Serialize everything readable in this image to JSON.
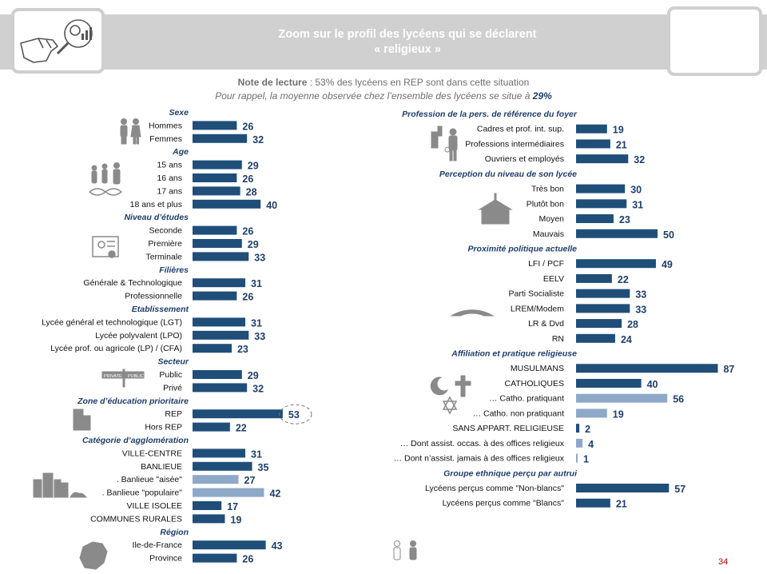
{
  "header": {
    "title_line1": "Zoom sur le profil des lycéens qui se déclarent",
    "title_line2": "« religieux »"
  },
  "note": {
    "label": "Note de lecture",
    "text": " :  53% des lycéens en REP sont dans cette situation",
    "reminder": "Pour rappel, la moyenne observée chez l’ensemble des lycéens se situe à ",
    "reminder_value": "29%"
  },
  "page_number": "34",
  "colors": {
    "primary": "#1f4e79",
    "secondary": "#8ea9c8",
    "heading": "#1f3e6b",
    "banner": "#d0d0d0"
  },
  "icons": [
    "people-icon",
    "family-dna-icon",
    "diploma-icon",
    "buildings-icon",
    "road-sign-icon",
    "city-skyline-icon",
    "france-map-icon",
    "workers-icon",
    "school-building-icon",
    "parliament-icon",
    "religious-symbols-icon",
    "person-outline-icon"
  ],
  "chart_data": {
    "type": "bar",
    "unit": "%",
    "left_column": [
      {
        "group": "Sexe",
        "items": [
          {
            "label": "Hommes",
            "value": 26
          },
          {
            "label": "Femmes",
            "value": 32
          }
        ]
      },
      {
        "group": "Age",
        "items": [
          {
            "label": "15 ans",
            "value": 29
          },
          {
            "label": "16 ans",
            "value": 26
          },
          {
            "label": "17 ans",
            "value": 28
          },
          {
            "label": "18 ans et plus",
            "value": 40
          }
        ]
      },
      {
        "group": "Niveau d’études",
        "items": [
          {
            "label": "Seconde",
            "value": 26
          },
          {
            "label": "Première",
            "value": 29
          },
          {
            "label": "Terminale",
            "value": 33
          }
        ]
      },
      {
        "group": "Filières",
        "items": [
          {
            "label": "Générale & Technologique",
            "value": 31
          },
          {
            "label": "Professionnelle",
            "value": 26
          }
        ]
      },
      {
        "group": "Etablissement",
        "items": [
          {
            "label": "Lycée général et technologique (LGT)",
            "value": 31
          },
          {
            "label": "Lycée polyvalent (LPO)",
            "value": 33
          },
          {
            "label": "Lycée prof. ou agricole (LP) / (CFA)",
            "value": 23
          }
        ]
      },
      {
        "group": "Secteur",
        "items": [
          {
            "label": "Public",
            "value": 29
          },
          {
            "label": "Privé",
            "value": 32
          }
        ]
      },
      {
        "group": "Zone d’éducation prioritaire",
        "items": [
          {
            "label": "REP",
            "value": 53,
            "highlight": true
          },
          {
            "label": "Hors REP",
            "value": 22
          }
        ]
      },
      {
        "group": "Catégorie d’agglomération",
        "items": [
          {
            "label": "VILLE-CENTRE",
            "value": 31
          },
          {
            "label": "BANLIEUE",
            "value": 35
          },
          {
            "label": ". Banlieue \"aisée\"",
            "value": 27,
            "sub": true
          },
          {
            "label": ". Banlieue \"populaire\"",
            "value": 42,
            "sub": true
          },
          {
            "label": "VILLE ISOLEE",
            "value": 17
          },
          {
            "label": "COMMUNES RURALES",
            "value": 19
          }
        ]
      },
      {
        "group": "Région",
        "items": [
          {
            "label": "Ile-de-France",
            "value": 43
          },
          {
            "label": "Province",
            "value": 26
          }
        ]
      }
    ],
    "right_column": [
      {
        "group": "Profession de la pers. de référence du foyer",
        "items": [
          {
            "label": "Cadres et prof. int. sup.",
            "value": 19
          },
          {
            "label": "Professions intermédiaires",
            "value": 21
          },
          {
            "label": "Ouvriers et employés",
            "value": 32
          }
        ]
      },
      {
        "group": "Perception du niveau de son lycée",
        "items": [
          {
            "label": "Très bon",
            "value": 30
          },
          {
            "label": "Plutôt bon",
            "value": 31
          },
          {
            "label": "Moyen",
            "value": 23
          },
          {
            "label": "Mauvais",
            "value": 50
          }
        ]
      },
      {
        "group": "Proximité politique actuelle",
        "items": [
          {
            "label": "LFI / PCF",
            "value": 49
          },
          {
            "label": "EELV",
            "value": 22
          },
          {
            "label": "Parti Socialiste",
            "value": 33
          },
          {
            "label": "LREM/Modem",
            "value": 33
          },
          {
            "label": "LR & Dvd",
            "value": 28
          },
          {
            "label": "RN",
            "value": 24
          }
        ]
      },
      {
        "group": "Affiliation et pratique religieuse",
        "items": [
          {
            "label": "MUSULMANS",
            "value": 87
          },
          {
            "label": "CATHOLIQUES",
            "value": 40
          },
          {
            "label": "… Catho. pratiquant",
            "value": 56,
            "sub": true
          },
          {
            "label": "… Catho. non pratiquant",
            "value": 19,
            "sub": true
          },
          {
            "label": "SANS APPART. RELIGIEUSE",
            "value": 2
          },
          {
            "label": "… Dont assist. occas. à des offices religieux",
            "value": 4,
            "sub": true
          },
          {
            "label": "… Dont n’assist. jamais à des offices religieux",
            "value": 1,
            "sub": true
          }
        ]
      },
      {
        "group": "Groupe ethnique perçu par autrui",
        "items": [
          {
            "label": "Lycéens perçus comme \"Non-blancs\"",
            "value": 57
          },
          {
            "label": "Lycéens perçus comme \"Blancs\"",
            "value": 21
          }
        ]
      }
    ]
  }
}
